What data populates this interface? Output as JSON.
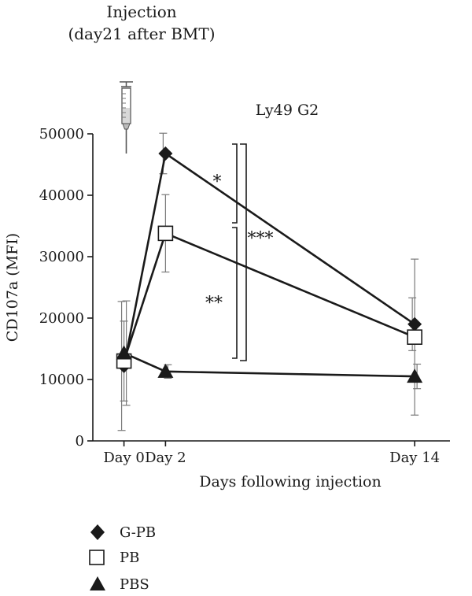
{
  "header": {
    "line1": "Injection",
    "line2": "(day21 after BMT)"
  },
  "chart_data": {
    "type": "line",
    "title": "Ly49 G2",
    "xlabel": "Days following injection",
    "ylabel": "CD107a (MFI)",
    "categories": [
      "Day 0",
      "Day 2",
      "Day 14"
    ],
    "x": [
      0,
      2,
      14
    ],
    "ylim": [
      0,
      50000
    ],
    "yticks": [
      0,
      10000,
      20000,
      30000,
      40000,
      50000
    ],
    "grid": false,
    "legend_position": "bottom-left",
    "series": [
      {
        "name": "G-PB",
        "marker": "diamond",
        "values": [
          12200,
          46800,
          19000
        ],
        "err": [
          10500,
          3300,
          4300
        ]
      },
      {
        "name": "PB",
        "marker": "square",
        "values": [
          13000,
          33800,
          16900
        ],
        "err": [
          6500,
          6300,
          12700
        ]
      },
      {
        "name": "PBS",
        "marker": "triangle",
        "values": [
          14300,
          11300,
          10500
        ],
        "err": [
          8500,
          1100,
          2000
        ]
      }
    ],
    "annotations": [
      {
        "text": "*",
        "between": [
          "G-PB",
          "PB"
        ],
        "at": "Day 2"
      },
      {
        "text": "**",
        "between": [
          "PB",
          "PBS"
        ],
        "at": "Day 2"
      },
      {
        "text": "***",
        "between": [
          "G-PB",
          "PBS"
        ],
        "at": "Day 2"
      }
    ]
  },
  "icons": {
    "syringe": "syringe-icon"
  }
}
